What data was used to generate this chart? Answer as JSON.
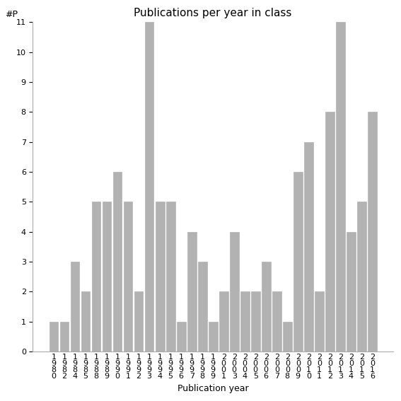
{
  "years": [
    "1980",
    "1982",
    "1984",
    "1985",
    "1988",
    "1989",
    "1990",
    "1991",
    "1992",
    "1993",
    "1994",
    "1995",
    "1996",
    "1997",
    "1998",
    "1999",
    "2001",
    "2003",
    "2004",
    "2005",
    "2006",
    "2007",
    "2008",
    "2009",
    "2010",
    "2011",
    "2012",
    "2013",
    "2014",
    "2015",
    "2016"
  ],
  "values": [
    1,
    1,
    3,
    2,
    5,
    5,
    6,
    5,
    2,
    11,
    5,
    5,
    1,
    4,
    3,
    1,
    2,
    4,
    2,
    2,
    3,
    2,
    1,
    6,
    7,
    2,
    8,
    11,
    4,
    5,
    8
  ],
  "bar_color": "#b2b2b2",
  "edge_color": "#b2b2b2",
  "title": "Publications per year in class",
  "xlabel": "Publication year",
  "ylabel": "#P",
  "ylim": [
    0,
    11
  ],
  "yticks": [
    0,
    1,
    2,
    3,
    4,
    5,
    6,
    7,
    8,
    9,
    10,
    11
  ],
  "background_color": "#ffffff",
  "title_fontsize": 11,
  "axis_label_fontsize": 9,
  "tick_fontsize": 8,
  "ylabel_fontsize": 9
}
